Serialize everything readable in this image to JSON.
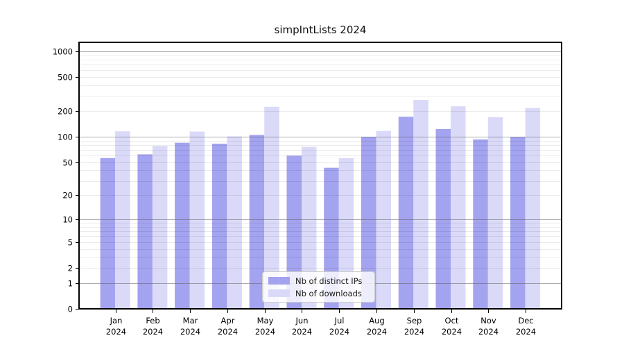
{
  "title": "simpIntLists 2024",
  "chart_data": {
    "type": "bar",
    "title": "simpIntLists 2024",
    "categories": [
      "Jan",
      "Feb",
      "Mar",
      "Apr",
      "May",
      "Jun",
      "Jul",
      "Aug",
      "Sep",
      "Oct",
      "Nov",
      "Dec"
    ],
    "x_year_label": "2024",
    "series": [
      {
        "name": "Nb of distinct IPs",
        "color": "#a3a3ef",
        "values": [
          56,
          62,
          85,
          83,
          105,
          60,
          43,
          100,
          172,
          123,
          93,
          100
        ]
      },
      {
        "name": "Nb of downloads",
        "color": "#dadaf8",
        "values": [
          116,
          78,
          115,
          101,
          225,
          76,
          56,
          117,
          270,
          228,
          170,
          218
        ]
      }
    ],
    "yscale": "log10(1+v)",
    "yticks": [
      0,
      1,
      2,
      5,
      10,
      20,
      50,
      100,
      200,
      500,
      1000
    ],
    "ylim": [
      0,
      1271
    ],
    "grid": true,
    "legend_position": "lower center",
    "colors": {
      "major_grid": "rgba(90,90,90,0.5)",
      "minor_grid": "rgba(0,0,0,0.08)",
      "spine": "#000000",
      "text": "#000000"
    }
  }
}
